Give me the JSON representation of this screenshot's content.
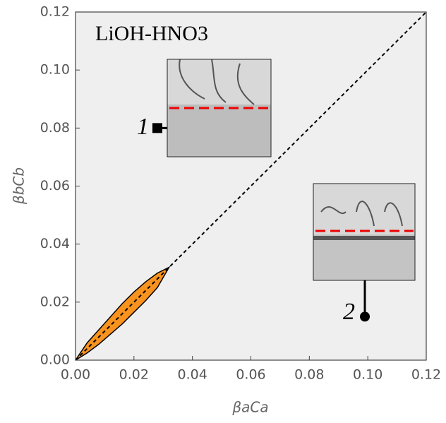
{
  "chart_data": {
    "type": "region",
    "annotation": "LiOH-HNO3",
    "xlabel": "βaCa",
    "ylabel": "βbCb",
    "xlim": [
      0,
      0.12
    ],
    "ylim": [
      0,
      0.12
    ],
    "xticks": [
      {
        "value": 0,
        "label": "0.00"
      },
      {
        "value": 0.02,
        "label": "0.02"
      },
      {
        "value": 0.04,
        "label": "0.04"
      },
      {
        "value": 0.06,
        "label": "0.06"
      },
      {
        "value": 0.08,
        "label": "0.08"
      },
      {
        "value": 0.1,
        "label": "0.10"
      },
      {
        "value": 0.12,
        "label": "0.12"
      }
    ],
    "yticks": [
      {
        "value": 0,
        "label": "0.00"
      },
      {
        "value": 0.02,
        "label": "0.02"
      },
      {
        "value": 0.04,
        "label": "0.04"
      },
      {
        "value": 0.06,
        "label": "0.06"
      },
      {
        "value": 0.08,
        "label": "0.08"
      },
      {
        "value": 0.1,
        "label": "0.10"
      },
      {
        "value": 0.12,
        "label": "0.12"
      }
    ],
    "region": {
      "color": "#f7931e",
      "x": [
        0,
        0.004,
        0.008,
        0.012,
        0.016,
        0.02,
        0.024,
        0.028,
        0.032
      ],
      "upper": [
        0,
        0.006,
        0.0105,
        0.015,
        0.0195,
        0.0235,
        0.027,
        0.03,
        0.032
      ],
      "lower": [
        0,
        0.0025,
        0.0055,
        0.009,
        0.0125,
        0.0165,
        0.0205,
        0.025,
        0.032
      ]
    },
    "line": {
      "x": [
        0,
        0.12
      ],
      "values": [
        0,
        0.12
      ],
      "color": "#000000"
    },
    "points": [
      {
        "label": "1",
        "x": 0.028,
        "y": 0.08,
        "marker": "square"
      },
      {
        "label": "2",
        "x": 0.099,
        "y": 0.015,
        "marker": "circle"
      }
    ]
  }
}
